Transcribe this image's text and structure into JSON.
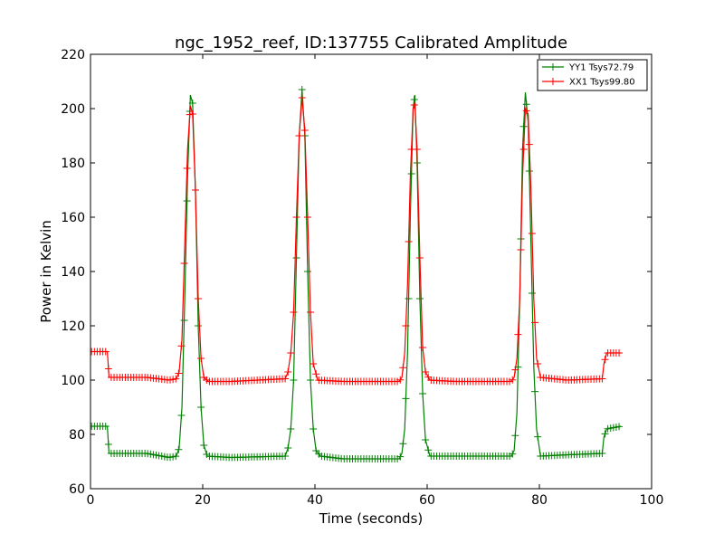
{
  "chart_data": {
    "type": "line",
    "title": "ngc_1952_reef, ID:137755 Calibrated Amplitude",
    "xlabel": "Time (seconds)",
    "ylabel": "Power in Kelvin",
    "xlim": [
      0,
      100
    ],
    "ylim": [
      60,
      220
    ],
    "xticks": [
      0,
      20,
      40,
      60,
      80,
      100
    ],
    "yticks": [
      60,
      80,
      100,
      120,
      140,
      160,
      180,
      200,
      220
    ],
    "grid": false,
    "legend_position": "top-right",
    "series": [
      {
        "name": "YY1 Tsys72.79",
        "color": "#008000",
        "marker": "+",
        "points": [
          [
            0.2,
            83
          ],
          [
            3.0,
            83
          ],
          [
            3.3,
            73
          ],
          [
            10,
            73
          ],
          [
            14,
            71.5
          ],
          [
            15.3,
            72
          ],
          [
            15.8,
            75
          ],
          [
            16.3,
            90
          ],
          [
            16.8,
            130
          ],
          [
            17.3,
            175
          ],
          [
            17.8,
            205
          ],
          [
            18.2,
            202
          ],
          [
            18.7,
            170
          ],
          [
            19.2,
            120
          ],
          [
            19.7,
            90
          ],
          [
            20.2,
            76
          ],
          [
            20.8,
            72
          ],
          [
            25,
            71.5
          ],
          [
            34.7,
            72
          ],
          [
            35.2,
            75
          ],
          [
            35.7,
            82
          ],
          [
            36.2,
            100
          ],
          [
            36.7,
            145
          ],
          [
            37.2,
            190
          ],
          [
            37.7,
            207
          ],
          [
            38.2,
            190
          ],
          [
            38.7,
            140
          ],
          [
            39.2,
            100
          ],
          [
            39.7,
            82
          ],
          [
            40.2,
            74
          ],
          [
            41,
            72
          ],
          [
            45,
            71
          ],
          [
            55,
            71
          ],
          [
            55.5,
            73
          ],
          [
            56.0,
            82
          ],
          [
            56.5,
            110
          ],
          [
            57.0,
            160
          ],
          [
            57.5,
            200
          ],
          [
            57.8,
            205
          ],
          [
            58.2,
            180
          ],
          [
            58.7,
            130
          ],
          [
            59.2,
            95
          ],
          [
            59.7,
            78
          ],
          [
            60.5,
            72
          ],
          [
            65,
            72
          ],
          [
            75,
            72
          ],
          [
            75.5,
            74
          ],
          [
            76.0,
            88
          ],
          [
            76.5,
            130
          ],
          [
            77.0,
            185
          ],
          [
            77.5,
            206
          ],
          [
            78.0,
            195
          ],
          [
            78.5,
            150
          ],
          [
            79.0,
            105
          ],
          [
            79.5,
            82
          ],
          [
            80.2,
            72
          ],
          [
            85,
            72.5
          ],
          [
            91.2,
            73
          ],
          [
            91.5,
            79
          ],
          [
            92.0,
            82
          ],
          [
            94.5,
            83
          ]
        ]
      },
      {
        "name": "XX1 Tsys99.80",
        "color": "#ff0000",
        "marker": "+",
        "points": [
          [
            0.2,
            110.5
          ],
          [
            3.0,
            110.5
          ],
          [
            3.3,
            101
          ],
          [
            10,
            101
          ],
          [
            14,
            100
          ],
          [
            15.3,
            100.5
          ],
          [
            15.8,
            103
          ],
          [
            16.3,
            115
          ],
          [
            16.8,
            150
          ],
          [
            17.3,
            185
          ],
          [
            17.8,
            201
          ],
          [
            18.2,
            198
          ],
          [
            18.7,
            170
          ],
          [
            19.2,
            130
          ],
          [
            19.7,
            108
          ],
          [
            20.2,
            101
          ],
          [
            21,
            99.5
          ],
          [
            25,
            99.5
          ],
          [
            34.7,
            100.5
          ],
          [
            35.2,
            103
          ],
          [
            35.7,
            110
          ],
          [
            36.2,
            125
          ],
          [
            36.7,
            160
          ],
          [
            37.2,
            190
          ],
          [
            37.7,
            204
          ],
          [
            38.2,
            192
          ],
          [
            38.7,
            160
          ],
          [
            39.2,
            125
          ],
          [
            39.7,
            106
          ],
          [
            40.5,
            100
          ],
          [
            45,
            99.5
          ],
          [
            55,
            99.5
          ],
          [
            55.5,
            101
          ],
          [
            56.0,
            110
          ],
          [
            56.5,
            135
          ],
          [
            57.0,
            175
          ],
          [
            57.5,
            200
          ],
          [
            57.8,
            202
          ],
          [
            58.2,
            185
          ],
          [
            58.7,
            145
          ],
          [
            59.2,
            112
          ],
          [
            59.7,
            103
          ],
          [
            60.5,
            100
          ],
          [
            65,
            99.5
          ],
          [
            75,
            99.5
          ],
          [
            75.5,
            101
          ],
          [
            76.0,
            108
          ],
          [
            76.5,
            130
          ],
          [
            77.0,
            175
          ],
          [
            77.5,
            200
          ],
          [
            78.0,
            198
          ],
          [
            78.5,
            170
          ],
          [
            79.0,
            130
          ],
          [
            79.5,
            108
          ],
          [
            80.2,
            101
          ],
          [
            85,
            100
          ],
          [
            91.2,
            100.5
          ],
          [
            91.5,
            106
          ],
          [
            92.0,
            110
          ],
          [
            94.5,
            110
          ]
        ]
      }
    ]
  }
}
